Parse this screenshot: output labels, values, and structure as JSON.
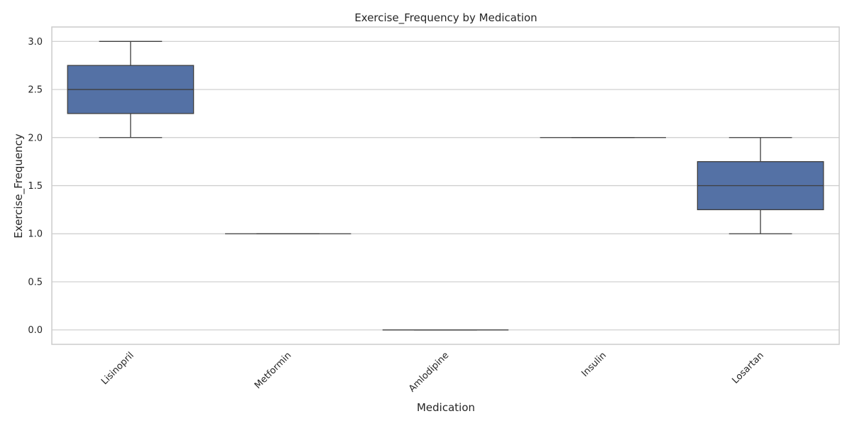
{
  "chart_data": {
    "type": "box",
    "title": "Exercise_Frequency by Medication",
    "xlabel": "Medication",
    "ylabel": "Exercise_Frequency",
    "ylim": [
      -0.15,
      3.15
    ],
    "yticks": [
      0.0,
      0.5,
      1.0,
      1.5,
      2.0,
      2.5,
      3.0
    ],
    "ytick_labels": [
      "0.0",
      "0.5",
      "1.0",
      "1.5",
      "2.0",
      "2.5",
      "3.0"
    ],
    "grid": true,
    "box_color": "#5471a5",
    "line_color": "#3f3f3f",
    "categories": [
      "Lisinopril",
      "Metformin",
      "Amlodipine",
      "Insulin",
      "Losartan"
    ],
    "boxes": [
      {
        "category": "Lisinopril",
        "min": 2.0,
        "q1": 2.25,
        "median": 2.5,
        "q3": 2.75,
        "max": 3.0
      },
      {
        "category": "Metformin",
        "min": 1.0,
        "q1": 1.0,
        "median": 1.0,
        "q3": 1.0,
        "max": 1.0
      },
      {
        "category": "Amlodipine",
        "min": 0.0,
        "q1": 0.0,
        "median": 0.0,
        "q3": 0.0,
        "max": 0.0
      },
      {
        "category": "Insulin",
        "min": 2.0,
        "q1": 2.0,
        "median": 2.0,
        "q3": 2.0,
        "max": 2.0
      },
      {
        "category": "Losartan",
        "min": 1.0,
        "q1": 1.25,
        "median": 1.5,
        "q3": 1.75,
        "max": 2.0
      }
    ]
  }
}
